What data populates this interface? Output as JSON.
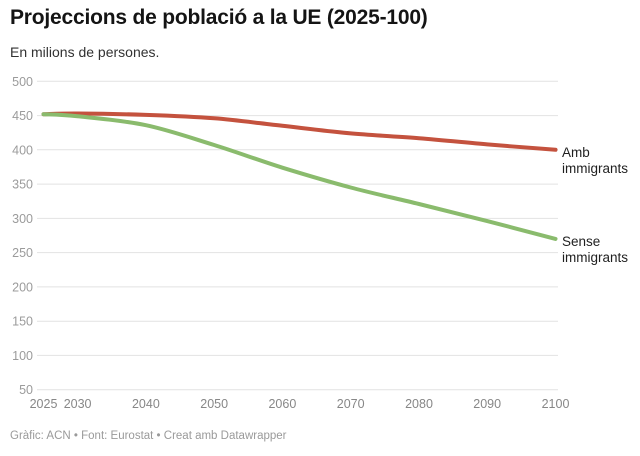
{
  "header": {
    "title": "Projeccions de població a la UE (2025-100)",
    "subtitle": "En milions de persones."
  },
  "chart_data": {
    "type": "line",
    "title": "Projeccions de població a la UE (2025-100)",
    "subtitle": "En milions de persones.",
    "x": [
      2025,
      2030,
      2040,
      2050,
      2060,
      2070,
      2080,
      2090,
      2100
    ],
    "series": [
      {
        "name": "Amb immigrants",
        "label_lines": [
          "Amb",
          "immigrants"
        ],
        "color": "#c4523e",
        "values": [
          452,
          453,
          451,
          446,
          435,
          424,
          417,
          408,
          400
        ]
      },
      {
        "name": "Sense immigrants",
        "label_lines": [
          "Sense",
          "immigrants"
        ],
        "color": "#8abb6d",
        "values": [
          452,
          449,
          436,
          407,
          374,
          345,
          321,
          296,
          270
        ]
      }
    ],
    "y_ticks": [
      500,
      450,
      400,
      350,
      300,
      250,
      200,
      150,
      100,
      50
    ],
    "x_ticks": [
      2025,
      2030,
      2040,
      2050,
      2060,
      2070,
      2080,
      2090,
      2100
    ],
    "ylim": [
      50,
      500
    ],
    "xlim": [
      2025,
      2100
    ],
    "grid": "horizontal",
    "legend": "direct-labels-right-of-line-ends"
  },
  "footer": {
    "text": "Gràfic: ACN • Font: Eurostat • Creat amb Datawrapper"
  }
}
